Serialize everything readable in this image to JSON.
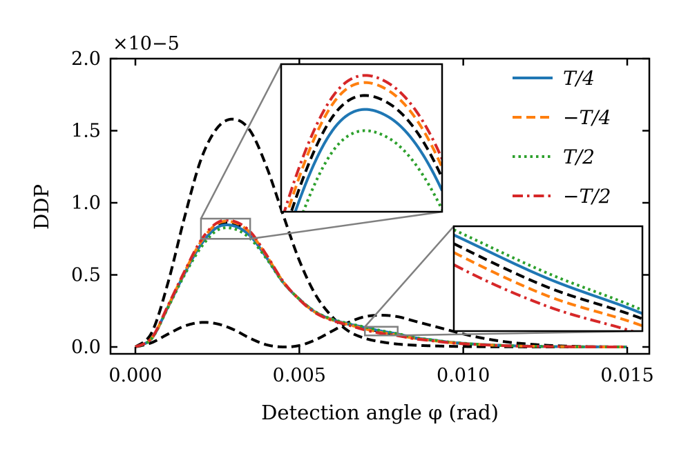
{
  "chart_data": {
    "type": "line",
    "xlabel": "Detection angle φ (rad)",
    "ylabel": "DDP",
    "y_multiplier": "×10−5",
    "xlim": [
      -0.0008,
      0.0157
    ],
    "ylim": [
      -0.05,
      2.0
    ],
    "xticks": [
      0.0,
      0.005,
      0.01,
      0.015
    ],
    "xtick_labels": [
      "0.000",
      "0.005",
      "0.010",
      "0.015"
    ],
    "yticks": [
      0.0,
      0.5,
      1.0,
      1.5,
      2.0
    ],
    "ytick_labels": [
      "0.0",
      "0.5",
      "1.0",
      "1.5",
      "2.0"
    ],
    "grid": false,
    "legend_position": "top-right",
    "x": [
      0,
      0.0005,
      0.001,
      0.0015,
      0.002,
      0.0025,
      0.003,
      0.0035,
      0.004,
      0.0045,
      0.005,
      0.0055,
      0.006,
      0.0065,
      0.007,
      0.0075,
      0.008,
      0.0085,
      0.009,
      0.0095,
      0.01,
      0.0105,
      0.011,
      0.0115,
      0.012,
      0.0125,
      0.013,
      0.0135,
      0.014,
      0.0145,
      0.015
    ],
    "series": [
      {
        "name": "",
        "color": "#000000",
        "style": "dashed",
        "values": [
          0,
          0.1,
          0.45,
          0.9,
          1.3,
          1.52,
          1.58,
          1.5,
          1.25,
          0.92,
          0.6,
          0.36,
          0.21,
          0.11,
          0.06,
          0.035,
          0.02,
          0.012,
          0.008,
          0.005,
          0.003,
          0.002,
          0.001,
          0.001,
          0,
          0,
          0,
          0,
          0,
          0,
          0
        ]
      },
      {
        "name": "",
        "color": "#000000",
        "style": "dashed",
        "values": [
          0,
          0.03,
          0.09,
          0.145,
          0.17,
          0.16,
          0.12,
          0.06,
          0.015,
          0.0,
          0.01,
          0.05,
          0.11,
          0.17,
          0.21,
          0.22,
          0.21,
          0.18,
          0.15,
          0.12,
          0.09,
          0.065,
          0.045,
          0.03,
          0.02,
          0.012,
          0.007,
          0.004,
          0.002,
          0.001,
          0
        ]
      },
      {
        "name": "",
        "color": "#000000",
        "style": "dashed",
        "values": [
          0,
          0.06,
          0.28,
          0.515,
          0.72,
          0.843,
          0.853,
          0.782,
          0.625,
          0.452,
          0.332,
          0.241,
          0.19,
          0.158,
          0.13,
          0.105,
          0.087,
          0.063,
          0.048,
          0.034,
          0.024,
          0.017,
          0.012,
          0.008,
          0.005,
          0.003,
          0.002,
          0.001,
          0.0005,
          0,
          0
        ]
      },
      {
        "name": "T/4",
        "color": "#1f77b4",
        "style": "solid",
        "values": [
          0,
          0.06,
          0.28,
          0.51,
          0.71,
          0.83,
          0.84,
          0.77,
          0.62,
          0.45,
          0.33,
          0.24,
          0.19,
          0.16,
          0.135,
          0.11,
          0.09,
          0.065,
          0.05,
          0.035,
          0.025,
          0.018,
          0.012,
          0.008,
          0.005,
          0.003,
          0.002,
          0.001,
          0.0005,
          0,
          0
        ]
      },
      {
        "name": "−T/4",
        "color": "#ff7f0e",
        "style": "dashed",
        "values": [
          0,
          0.062,
          0.285,
          0.52,
          0.73,
          0.855,
          0.865,
          0.792,
          0.632,
          0.455,
          0.33,
          0.238,
          0.187,
          0.155,
          0.125,
          0.1,
          0.083,
          0.06,
          0.046,
          0.033,
          0.023,
          0.017,
          0.011,
          0.007,
          0.005,
          0.003,
          0.002,
          0.001,
          0.0005,
          0,
          0
        ]
      },
      {
        "name": "T/2",
        "color": "#2ca02c",
        "style": "dotted",
        "values": [
          0,
          0.058,
          0.275,
          0.5,
          0.69,
          0.81,
          0.82,
          0.752,
          0.612,
          0.448,
          0.332,
          0.243,
          0.193,
          0.163,
          0.138,
          0.113,
          0.092,
          0.066,
          0.051,
          0.036,
          0.026,
          0.018,
          0.012,
          0.008,
          0.005,
          0.003,
          0.002,
          0.001,
          0.0005,
          0,
          0
        ]
      },
      {
        "name": "−T/2",
        "color": "#d62728",
        "style": "dashdot",
        "values": [
          0,
          0.063,
          0.29,
          0.525,
          0.74,
          0.862,
          0.872,
          0.8,
          0.638,
          0.457,
          0.328,
          0.235,
          0.184,
          0.151,
          0.118,
          0.094,
          0.078,
          0.057,
          0.044,
          0.031,
          0.022,
          0.016,
          0.011,
          0.007,
          0.004,
          0.003,
          0.002,
          0.001,
          0.0005,
          0,
          0
        ]
      }
    ],
    "insets": [
      {
        "xlim": [
          0.002,
          0.0035
        ],
        "ylim": [
          0.75,
          0.89
        ]
      },
      {
        "xlim": [
          0.007,
          0.008
        ],
        "ylim": [
          0.08,
          0.14
        ]
      }
    ]
  }
}
